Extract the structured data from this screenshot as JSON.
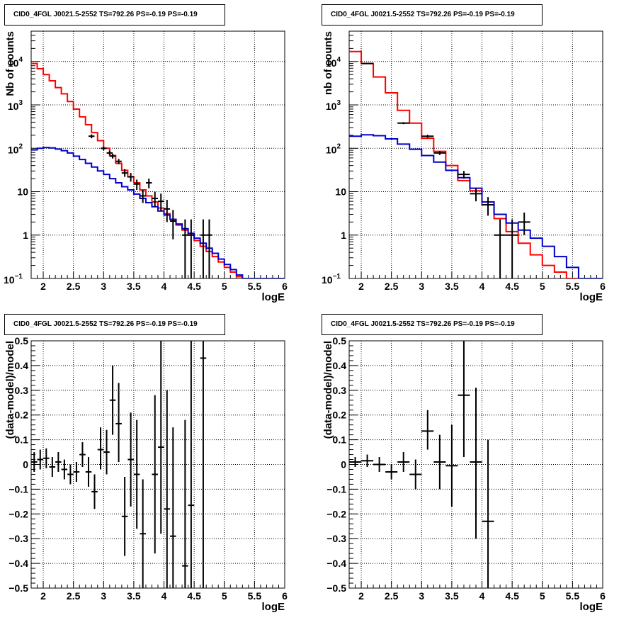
{
  "chart_data": [
    {
      "type": "line",
      "panel": "top-left",
      "title": "CID0_4FGL J0021.5-2552 TS=792.26 PS=-0.19 PS=-0.19",
      "xlabel": "logE",
      "ylabel": "Nb of counts",
      "log_y": true,
      "xlim": [
        1.8,
        6.0
      ],
      "ylim": [
        0.1,
        50000
      ],
      "grid": true,
      "x_ticks": [
        "2",
        "2.5",
        "3",
        "3.5",
        "4",
        "4.5",
        "5",
        "5.5",
        "6"
      ],
      "y_ticks": [
        {
          "v": 0.1,
          "base": "10",
          "exp": "−1"
        },
        {
          "v": 1,
          "text": "1"
        },
        {
          "v": 10,
          "text": "10"
        },
        {
          "v": 100,
          "base": "10",
          "exp": "2"
        },
        {
          "v": 1000,
          "base": "10",
          "exp": "3"
        },
        {
          "v": 10000,
          "base": "10",
          "exp": "4"
        }
      ],
      "series": [
        {
          "color": "#ff0000",
          "kind": "step",
          "edges": [
            1.8,
            1.9,
            2.0,
            2.1,
            2.2,
            2.3,
            2.4,
            2.5,
            2.6,
            2.7,
            2.8,
            2.9,
            3.0,
            3.1,
            3.2,
            3.3,
            3.4,
            3.5,
            3.6,
            3.7,
            3.8,
            3.9,
            4.0,
            4.1,
            4.2,
            4.3,
            4.4,
            4.5,
            4.6,
            4.7,
            4.8,
            4.9,
            5.0,
            5.1,
            5.2,
            5.3,
            5.4,
            5.5,
            5.6,
            5.7,
            5.8,
            5.9,
            6.0
          ],
          "values": [
            9000,
            6800,
            5000,
            3600,
            2500,
            1800,
            1200,
            800,
            530,
            350,
            230,
            150,
            100,
            68,
            45,
            31,
            22,
            16,
            11,
            8,
            5.8,
            4.2,
            3.1,
            2.3,
            1.7,
            1.3,
            1.0,
            0.75,
            0.55,
            0.42,
            0.32,
            0.24,
            0.18,
            0.14,
            0.11,
            0.1,
            0.1,
            0.1,
            0.1,
            0.1,
            0.1,
            0.1
          ]
        },
        {
          "color": "#0000cc",
          "kind": "step",
          "edges": [
            1.8,
            1.9,
            2.0,
            2.1,
            2.2,
            2.3,
            2.4,
            2.5,
            2.6,
            2.7,
            2.8,
            2.9,
            3.0,
            3.1,
            3.2,
            3.3,
            3.4,
            3.5,
            3.6,
            3.7,
            3.8,
            3.9,
            4.0,
            4.1,
            4.2,
            4.3,
            4.4,
            4.5,
            4.6,
            4.7,
            4.8,
            4.9,
            5.0,
            5.1,
            5.2,
            5.3,
            5.4,
            5.5,
            5.6,
            5.7,
            5.8,
            5.9,
            6.0
          ],
          "values": [
            92,
            100,
            104,
            102,
            96,
            88,
            78,
            66,
            55,
            45,
            37,
            30,
            25,
            20,
            16,
            13,
            11,
            8.8,
            7.0,
            5.6,
            4.5,
            3.6,
            2.9,
            2.3,
            1.8,
            1.4,
            1.1,
            0.85,
            0.65,
            0.5,
            0.38,
            0.28,
            0.21,
            0.16,
            0.12,
            0.1,
            0.1,
            0.1,
            0.1,
            0.1,
            0.1,
            0.1
          ]
        }
      ],
      "points": [
        {
          "x": 2.8,
          "y": 190,
          "xerr": 0.05,
          "ylo": 170,
          "yhi": 210
        },
        {
          "x": 3.0,
          "y": 100,
          "xerr": 0.05,
          "ylo": 90,
          "yhi": 110
        },
        {
          "x": 3.1,
          "y": 78,
          "xerr": 0.05,
          "ylo": 70,
          "yhi": 88
        },
        {
          "x": 3.15,
          "y": 66,
          "xerr": 0.05,
          "ylo": 58,
          "yhi": 75
        },
        {
          "x": 3.25,
          "y": 50,
          "xerr": 0.05,
          "ylo": 43,
          "yhi": 57
        },
        {
          "x": 3.35,
          "y": 27,
          "xerr": 0.05,
          "ylo": 22,
          "yhi": 33
        },
        {
          "x": 3.45,
          "y": 22,
          "xerr": 0.05,
          "ylo": 17,
          "yhi": 27
        },
        {
          "x": 3.55,
          "y": 15,
          "xerr": 0.05,
          "ylo": 11,
          "yhi": 19
        },
        {
          "x": 3.65,
          "y": 8,
          "xerr": 0.05,
          "ylo": 5.5,
          "yhi": 11
        },
        {
          "x": 3.75,
          "y": 16,
          "xerr": 0.05,
          "ylo": 12,
          "yhi": 20
        },
        {
          "x": 3.85,
          "y": 7,
          "xerr": 0.05,
          "ylo": 4.5,
          "yhi": 10
        },
        {
          "x": 3.95,
          "y": 6,
          "xerr": 0.05,
          "ylo": 3.5,
          "yhi": 9
        },
        {
          "x": 4.05,
          "y": 4,
          "xerr": 0.05,
          "ylo": 2,
          "yhi": 6.5
        },
        {
          "x": 4.15,
          "y": 2.1,
          "xerr": 0.05,
          "ylo": 0.8,
          "yhi": 3.8
        },
        {
          "x": 4.35,
          "y": 1,
          "xerr": 0.05,
          "ylo": 0.1,
          "yhi": 2.3
        },
        {
          "x": 4.45,
          "y": 1,
          "xerr": 0.05,
          "ylo": 0.1,
          "yhi": 2.3
        },
        {
          "x": 4.65,
          "y": 1,
          "xerr": 0.05,
          "ylo": 0.1,
          "yhi": 2.3
        },
        {
          "x": 4.75,
          "y": 1,
          "xerr": 0.05,
          "ylo": 0.1,
          "yhi": 2.3
        }
      ]
    },
    {
      "type": "line",
      "panel": "top-right",
      "title": "CID0_4FGL J0021.5-2552 TS=792.26 PS=-0.19 PS=-0.19",
      "xlabel": "logE",
      "ylabel": "nb of counts",
      "log_y": true,
      "xlim": [
        1.8,
        6.0
      ],
      "ylim": [
        0.1,
        50000
      ],
      "grid": true,
      "x_ticks": [
        "2",
        "2.5",
        "3",
        "3.5",
        "4",
        "4.5",
        "5",
        "5.5",
        "6"
      ],
      "y_ticks": [
        {
          "v": 0.1,
          "base": "10",
          "exp": "−1"
        },
        {
          "v": 1,
          "text": "1"
        },
        {
          "v": 10,
          "text": "10"
        },
        {
          "v": 100,
          "base": "10",
          "exp": "2"
        },
        {
          "v": 1000,
          "base": "10",
          "exp": "3"
        },
        {
          "v": 10000,
          "base": "10",
          "exp": "4"
        }
      ],
      "series": [
        {
          "color": "#ff0000",
          "kind": "step",
          "edges": [
            1.8,
            2.0,
            2.2,
            2.4,
            2.6,
            2.8,
            3.0,
            3.2,
            3.4,
            3.6,
            3.8,
            4.0,
            4.2,
            4.4,
            4.6,
            4.8,
            5.0,
            5.2,
            5.4,
            5.6,
            5.8,
            6.0
          ],
          "values": [
            17000,
            9000,
            4400,
            1900,
            750,
            380,
            170,
            85,
            40,
            18,
            10.5,
            5,
            2.4,
            1.2,
            0.65,
            0.35,
            0.2,
            0.14,
            0.1,
            0.1,
            0.1
          ]
        },
        {
          "color": "#0000cc",
          "kind": "step",
          "edges": [
            1.8,
            2.0,
            2.2,
            2.4,
            2.6,
            2.8,
            3.0,
            3.2,
            3.4,
            3.6,
            3.8,
            4.0,
            4.2,
            4.4,
            4.6,
            4.8,
            5.0,
            5.2,
            5.4,
            5.6,
            5.8,
            6.0
          ],
          "values": [
            190,
            205,
            195,
            165,
            125,
            95,
            68,
            48,
            31,
            21,
            12,
            5.8,
            3.0,
            1.9,
            1.3,
            0.85,
            0.55,
            0.32,
            0.18,
            0.1,
            0.1
          ]
        }
      ],
      "points": [
        {
          "x": 2.1,
          "y": 9000,
          "xerr": 0.1,
          "ylo": 8700,
          "yhi": 9300
        },
        {
          "x": 2.7,
          "y": 380,
          "xerr": 0.1,
          "ylo": 360,
          "yhi": 400
        },
        {
          "x": 3.1,
          "y": 190,
          "xerr": 0.1,
          "ylo": 175,
          "yhi": 205
        },
        {
          "x": 3.3,
          "y": 78,
          "xerr": 0.1,
          "ylo": 70,
          "yhi": 87
        },
        {
          "x": 3.7,
          "y": 25,
          "xerr": 0.1,
          "ylo": 20,
          "yhi": 30
        },
        {
          "x": 3.9,
          "y": 9,
          "xerr": 0.1,
          "ylo": 6,
          "yhi": 12
        },
        {
          "x": 4.1,
          "y": 5,
          "xerr": 0.1,
          "ylo": 2.8,
          "yhi": 7.5
        },
        {
          "x": 4.3,
          "y": 1,
          "xerr": 0.1,
          "ylo": 0.1,
          "yhi": 2.3
        },
        {
          "x": 4.5,
          "y": 1,
          "xerr": 0.1,
          "ylo": 0.1,
          "yhi": 2.3
        },
        {
          "x": 4.7,
          "y": 2,
          "xerr": 0.1,
          "ylo": 1,
          "yhi": 3.3
        }
      ]
    },
    {
      "type": "scatter",
      "panel": "bottom-left",
      "title": "CID0_4FGL J0021.5-2552 TS=792.26 PS=-0.19 PS=-0.19",
      "xlabel": "logE",
      "ylabel": "(data-model)/model",
      "log_y": false,
      "xlim": [
        1.8,
        6.0
      ],
      "ylim": [
        -0.5,
        0.5
      ],
      "grid": true,
      "x_ticks": [
        "2",
        "2.5",
        "3",
        "3.5",
        "4",
        "4.5",
        "5",
        "5.5",
        "6"
      ],
      "y_ticks_text": [
        "−0.5",
        "−0.4",
        "−0.3",
        "−0.2",
        "−0.1",
        "0",
        "0.1",
        "0.2",
        "0.3",
        "0.4",
        "0.5"
      ],
      "points": [
        {
          "x": 1.85,
          "y": 0.01,
          "xerr": 0.05,
          "ylo": -0.03,
          "yhi": 0.05
        },
        {
          "x": 1.95,
          "y": 0.02,
          "xerr": 0.05,
          "ylo": -0.02,
          "yhi": 0.06
        },
        {
          "x": 2.05,
          "y": 0.025,
          "xerr": 0.05,
          "ylo": -0.015,
          "yhi": 0.065
        },
        {
          "x": 2.15,
          "y": -0.01,
          "xerr": 0.05,
          "ylo": -0.05,
          "yhi": 0.03
        },
        {
          "x": 2.25,
          "y": 0.01,
          "xerr": 0.05,
          "ylo": -0.03,
          "yhi": 0.05
        },
        {
          "x": 2.35,
          "y": -0.02,
          "xerr": 0.05,
          "ylo": -0.06,
          "yhi": 0.02
        },
        {
          "x": 2.45,
          "y": -0.04,
          "xerr": 0.05,
          "ylo": -0.08,
          "yhi": 0.0
        },
        {
          "x": 2.55,
          "y": -0.03,
          "xerr": 0.05,
          "ylo": -0.07,
          "yhi": 0.01
        },
        {
          "x": 2.65,
          "y": 0.04,
          "xerr": 0.05,
          "ylo": -0.01,
          "yhi": 0.09
        },
        {
          "x": 2.75,
          "y": -0.03,
          "xerr": 0.05,
          "ylo": -0.09,
          "yhi": 0.03
        },
        {
          "x": 2.85,
          "y": -0.11,
          "xerr": 0.05,
          "ylo": -0.18,
          "yhi": -0.04
        },
        {
          "x": 2.95,
          "y": 0.06,
          "xerr": 0.05,
          "ylo": -0.02,
          "yhi": 0.15
        },
        {
          "x": 3.05,
          "y": 0.05,
          "xerr": 0.05,
          "ylo": -0.04,
          "yhi": 0.14
        },
        {
          "x": 3.15,
          "y": 0.26,
          "xerr": 0.05,
          "ylo": 0.12,
          "yhi": 0.4
        },
        {
          "x": 3.25,
          "y": 0.165,
          "xerr": 0.05,
          "ylo": 0.01,
          "yhi": 0.33
        },
        {
          "x": 3.35,
          "y": -0.21,
          "xerr": 0.05,
          "ylo": -0.37,
          "yhi": -0.05
        },
        {
          "x": 3.45,
          "y": 0.02,
          "xerr": 0.05,
          "ylo": -0.17,
          "yhi": 0.21
        },
        {
          "x": 3.55,
          "y": -0.04,
          "xerr": 0.05,
          "ylo": -0.26,
          "yhi": 0.18
        },
        {
          "x": 3.65,
          "y": -0.28,
          "xerr": 0.05,
          "ylo": -0.5,
          "yhi": -0.06
        },
        {
          "x": 3.85,
          "y": -0.04,
          "xerr": 0.05,
          "ylo": -0.36,
          "yhi": 0.28
        },
        {
          "x": 3.95,
          "y": 0.07,
          "xerr": 0.05,
          "ylo": -0.28,
          "yhi": 0.5
        },
        {
          "x": 4.05,
          "y": -0.18,
          "xerr": 0.05,
          "ylo": -0.5,
          "yhi": 0.3
        },
        {
          "x": 4.15,
          "y": -0.29,
          "xerr": 0.05,
          "ylo": -0.5,
          "yhi": 0.15
        },
        {
          "x": 4.35,
          "y": -0.41,
          "xerr": 0.05,
          "ylo": -0.5,
          "yhi": 0.18
        },
        {
          "x": 4.45,
          "y": -0.165,
          "xerr": 0.05,
          "ylo": -0.5,
          "yhi": 0.5
        },
        {
          "x": 4.65,
          "y": 0.43,
          "xerr": 0.05,
          "ylo": -0.5,
          "yhi": 0.5
        }
      ]
    },
    {
      "type": "scatter",
      "panel": "bottom-right",
      "title": "CID0_4FGL J0021.5-2552 TS=792.26 PS=-0.19 PS=-0.19",
      "xlabel": "logE",
      "ylabel": "(data-model)/model",
      "log_y": false,
      "xlim": [
        1.8,
        6.0
      ],
      "ylim": [
        -0.5,
        0.5
      ],
      "grid": true,
      "x_ticks": [
        "2",
        "2.5",
        "3",
        "3.5",
        "4",
        "4.5",
        "5",
        "5.5",
        "6"
      ],
      "y_ticks_text": [
        "−0.5",
        "−0.4",
        "−0.3",
        "−0.2",
        "−0.1",
        "0",
        "0.1",
        "0.2",
        "0.3",
        "0.4",
        "0.5"
      ],
      "points": [
        {
          "x": 1.9,
          "y": 0.01,
          "xerr": 0.1,
          "ylo": -0.01,
          "yhi": 0.03
        },
        {
          "x": 2.1,
          "y": 0.015,
          "xerr": 0.1,
          "ylo": -0.01,
          "yhi": 0.04
        },
        {
          "x": 2.3,
          "y": 0.0,
          "xerr": 0.1,
          "ylo": -0.03,
          "yhi": 0.03
        },
        {
          "x": 2.5,
          "y": -0.03,
          "xerr": 0.1,
          "ylo": -0.06,
          "yhi": 0.0
        },
        {
          "x": 2.7,
          "y": 0.01,
          "xerr": 0.1,
          "ylo": -0.03,
          "yhi": 0.05
        },
        {
          "x": 2.9,
          "y": -0.04,
          "xerr": 0.1,
          "ylo": -0.1,
          "yhi": 0.02
        },
        {
          "x": 3.1,
          "y": 0.135,
          "xerr": 0.1,
          "ylo": 0.06,
          "yhi": 0.22
        },
        {
          "x": 3.3,
          "y": 0.01,
          "xerr": 0.1,
          "ylo": -0.1,
          "yhi": 0.12
        },
        {
          "x": 3.5,
          "y": -0.005,
          "xerr": 0.1,
          "ylo": -0.17,
          "yhi": 0.16
        },
        {
          "x": 3.7,
          "y": 0.28,
          "xerr": 0.1,
          "ylo": 0.03,
          "yhi": 0.5
        },
        {
          "x": 3.9,
          "y": 0.01,
          "xerr": 0.1,
          "ylo": -0.3,
          "yhi": 0.31
        },
        {
          "x": 4.1,
          "y": -0.23,
          "xerr": 0.1,
          "ylo": -0.5,
          "yhi": 0.1
        }
      ]
    }
  ]
}
